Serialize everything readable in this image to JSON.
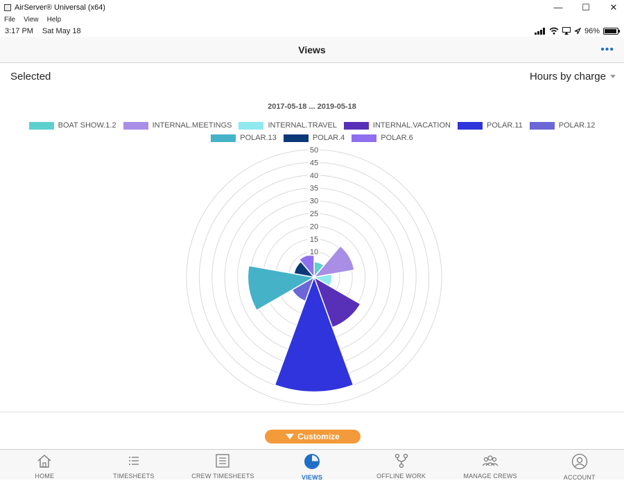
{
  "window": {
    "title": "AirServer® Universal (x64)",
    "menu": [
      "File",
      "View",
      "Help"
    ],
    "controls": {
      "minimize": "—",
      "maximize": "☐",
      "close": "✕"
    }
  },
  "status": {
    "time": "3:17 PM",
    "date": "Sat May 18",
    "battery": "96%"
  },
  "nav": {
    "title": "Views",
    "more": "•••"
  },
  "selection": {
    "label": "Selected",
    "view": "Hours by charge"
  },
  "customize": {
    "label": "Customize"
  },
  "tabs": [
    {
      "label": "HOME",
      "icon": "home-icon",
      "active": false
    },
    {
      "label": "TIMESHEETS",
      "icon": "list-icon",
      "active": false
    },
    {
      "label": "CREW TIMESHEETS",
      "icon": "document-list-icon",
      "active": false
    },
    {
      "label": "VIEWS",
      "icon": "pie-chart-icon",
      "active": true
    },
    {
      "label": "OFFLINE WORK",
      "icon": "branch-icon",
      "active": false
    },
    {
      "label": "MANAGE CREWS",
      "icon": "group-icon",
      "active": false
    },
    {
      "label": "ACCOUNT",
      "icon": "user-icon",
      "active": false
    }
  ],
  "colors": {
    "accent": "#1f6fc7",
    "customize": "#f39a3a"
  },
  "chart_data": {
    "type": "polar-area",
    "title": "2017-05-18 ... 2019-05-18",
    "rlim": [
      0,
      50
    ],
    "ticks": [
      "10",
      "15",
      "20",
      "25",
      "30",
      "35",
      "40",
      "45",
      "50"
    ],
    "grid": true,
    "legend_position": "top",
    "series": [
      {
        "name": "BOAT SHOW.1.2",
        "value": 6,
        "color": "#5ecfcf"
      },
      {
        "name": "INTERNAL.MEETINGS",
        "value": 16,
        "color": "#a98ee6"
      },
      {
        "name": "INTERNAL.TRAVEL",
        "value": 7,
        "color": "#8fe9ef"
      },
      {
        "name": "INTERNAL.VACATION",
        "value": 21,
        "color": "#5830b8"
      },
      {
        "name": "POLAR.11",
        "value": 45,
        "color": "#2f34dc"
      },
      {
        "name": "POLAR.12",
        "value": 10,
        "color": "#6b67d6"
      },
      {
        "name": "POLAR.13",
        "value": 26,
        "color": "#45b2c8"
      },
      {
        "name": "POLAR.4",
        "value": 8,
        "color": "#0b3877"
      },
      {
        "name": "POLAR.6",
        "value": 9,
        "color": "#8f6ef0"
      }
    ]
  }
}
